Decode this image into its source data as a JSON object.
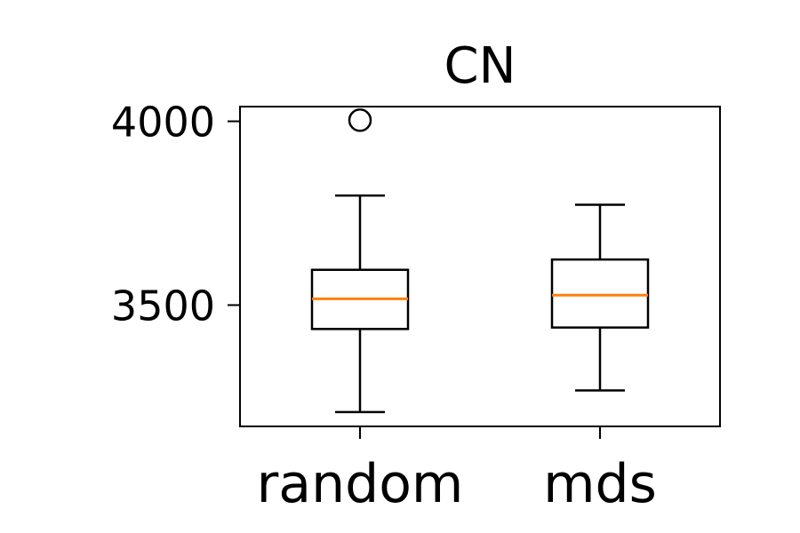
{
  "chart_data": {
    "type": "box",
    "title": "CN",
    "xlabel": "",
    "ylabel": "",
    "ylim": [
      3170,
      4040
    ],
    "yticks": [
      3500,
      4000
    ],
    "ytick_labels": [
      "3500",
      "4000"
    ],
    "grid": false,
    "median_color": "#ff7f0e",
    "line_color": "#000000",
    "categories": [
      "random",
      "mds"
    ],
    "boxes": [
      {
        "label": "random",
        "whislo": 3209,
        "q1": 3435,
        "med": 3517,
        "q3": 3596,
        "whishi": 3798,
        "fliers": [
          4003
        ]
      },
      {
        "label": "mds",
        "whislo": 3268,
        "q1": 3439,
        "med": 3527,
        "q3": 3624,
        "whishi": 3773,
        "fliers": []
      }
    ]
  }
}
